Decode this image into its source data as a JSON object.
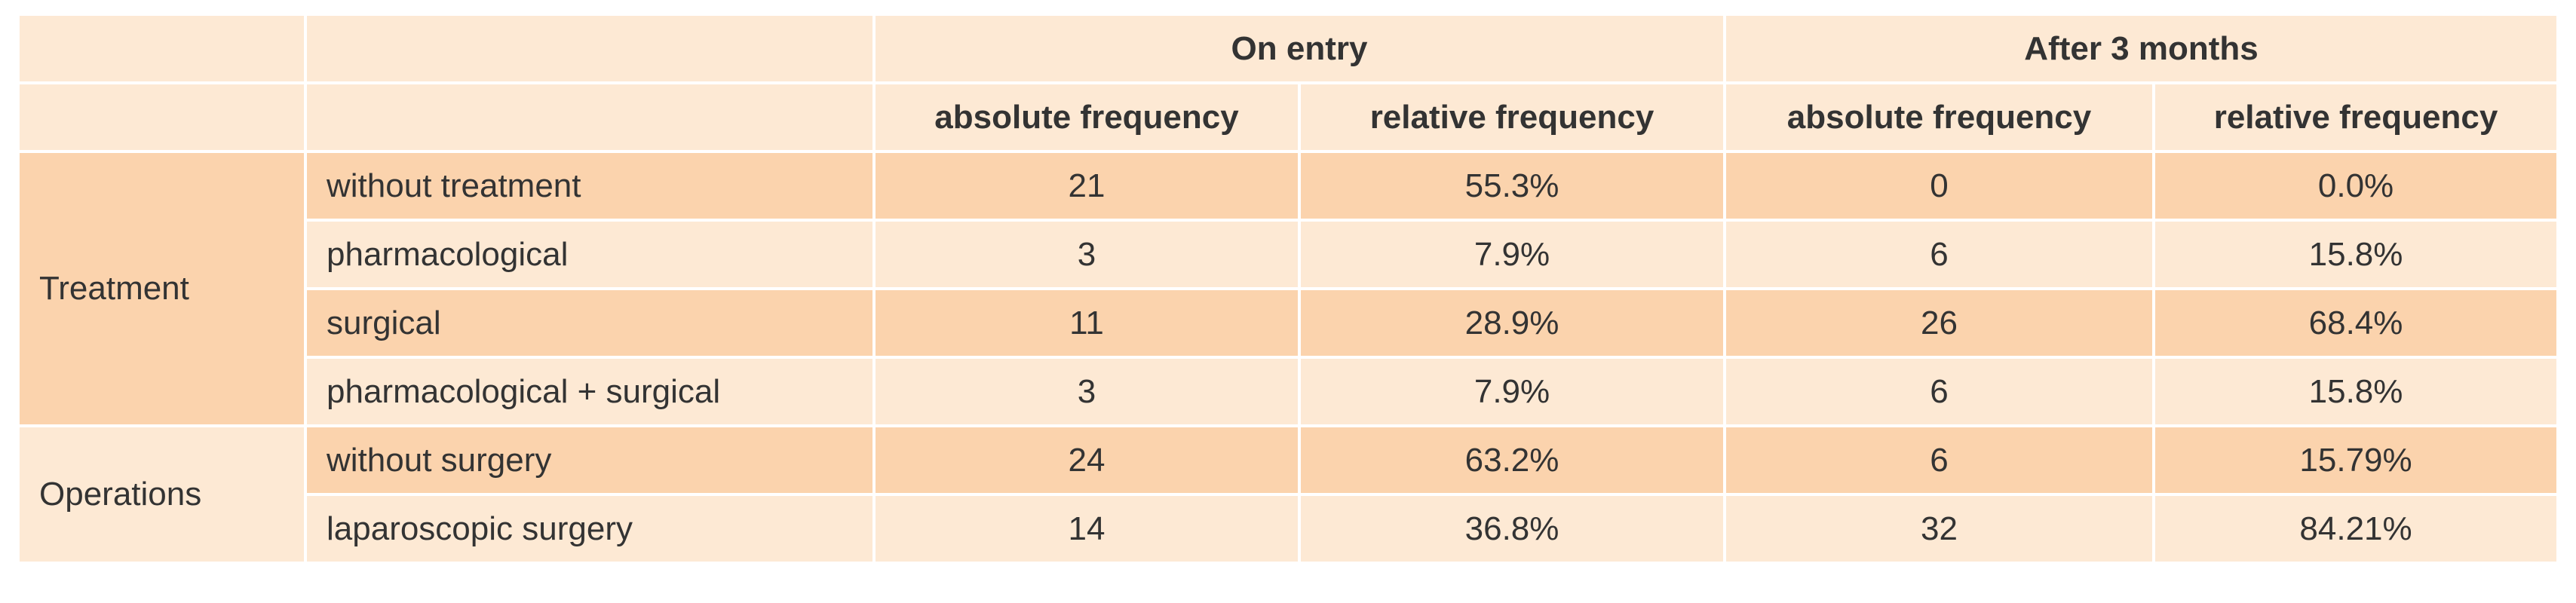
{
  "header": {
    "groups": [
      "On entry",
      "After 3 months"
    ],
    "columns": [
      "absolute frequency",
      "relative frequency",
      "absolute frequency",
      "relative frequency"
    ]
  },
  "sections": [
    {
      "label": "Treatment",
      "rows": [
        {
          "label": "without treatment",
          "values": [
            "21",
            "55.3%",
            "0",
            "0.0%"
          ]
        },
        {
          "label": "pharmacological",
          "values": [
            "3",
            "7.9%",
            "6",
            "15.8%"
          ]
        },
        {
          "label": "surgical",
          "values": [
            "11",
            "28.9%",
            "26",
            "68.4%"
          ]
        },
        {
          "label": "pharmacological + surgical",
          "values": [
            "3",
            "7.9%",
            "6",
            "15.8%"
          ]
        }
      ]
    },
    {
      "label": "Operations",
      "rows": [
        {
          "label": "without surgery",
          "values": [
            "24",
            "63.2%",
            "6",
            "15.79%"
          ]
        },
        {
          "label": "laparoscopic surgery",
          "values": [
            "14",
            "36.8%",
            "32",
            "84.21%"
          ]
        }
      ]
    }
  ]
}
